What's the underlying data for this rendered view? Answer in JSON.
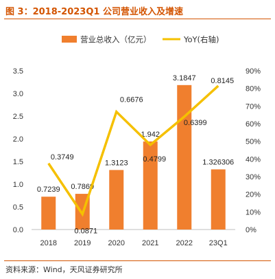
{
  "title": "图 3：2018-2023Q1 公司营业收入及增速",
  "source": "资料来源：Wind，天风证券研究所",
  "colors": {
    "bar": "#F07F2E",
    "line": "#F5C000",
    "accent": "#D35400"
  },
  "chart_data": {
    "type": "bar",
    "categories": [
      "2018",
      "2019",
      "2020",
      "2021",
      "2022",
      "23Q1"
    ],
    "series": [
      {
        "name": "营业总收入（亿元）",
        "type": "bar",
        "axis": "left",
        "values": [
          0.7239,
          0.7869,
          1.3123,
          1.942,
          3.1847,
          1.326306
        ],
        "labels": [
          "0.7239",
          "0.7869",
          "1.3123",
          "1.942",
          "3.1847",
          "1.326306"
        ]
      },
      {
        "name": "YoY(右轴)",
        "type": "line",
        "axis": "right",
        "values": [
          0.3749,
          0.0871,
          0.6676,
          0.4799,
          0.6399,
          0.8145
        ],
        "labels": [
          "0.3749",
          "0.0871",
          "0.6676",
          "0.4799",
          "0.6399",
          "0.8145"
        ]
      }
    ],
    "y_left": {
      "min": 0,
      "max": 3.5,
      "ticks": [
        "0.0",
        "0.5",
        "1.0",
        "1.5",
        "2.0",
        "2.5",
        "3.0",
        "3.5"
      ]
    },
    "y_right": {
      "min": 0,
      "max": 0.9,
      "ticks": [
        "0%",
        "10%",
        "20%",
        "30%",
        "40%",
        "50%",
        "60%",
        "70%",
        "80%",
        "90%"
      ]
    },
    "legend": "top",
    "grid": false
  }
}
